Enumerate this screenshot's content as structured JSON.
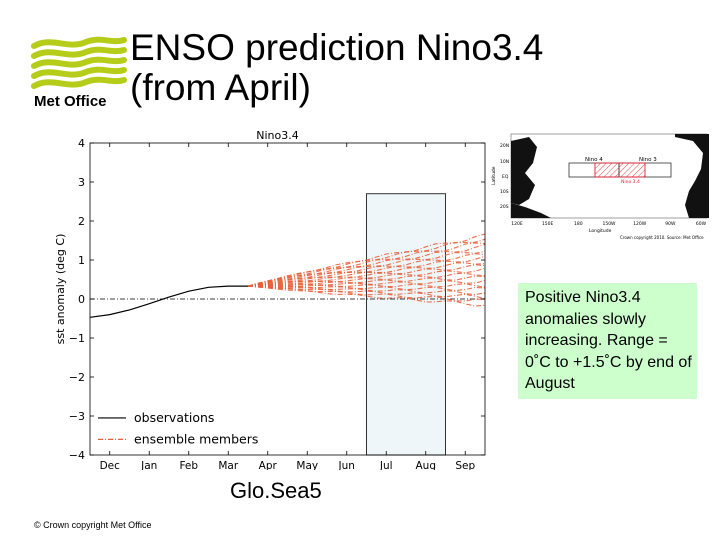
{
  "branding": {
    "logo_text": "Met Office",
    "copyright": "© Crown copyright   Met Office"
  },
  "slide": {
    "title_line1": "ENSO prediction Nino3.4",
    "title_line2": "(from April)",
    "caption": "Glo.Sea5",
    "callout": "Positive Nino3.4 anomalies slowly increasing. Range = 0˚C to +1.5˚C by end of August"
  },
  "colors": {
    "logo_green": "#b5cc18",
    "logo_navy": "#1a2a50",
    "observations": "#000000",
    "ensemble": "#e8613a",
    "highlight_fill": "#eef6f9",
    "callout_bg": "#ccffcc"
  },
  "map": {
    "labels": {
      "nino4": "Nino 4",
      "nino3": "Nino 3",
      "nino34": "Nino 3.4",
      "lat_20n": "20N",
      "lat_10n": "10N",
      "lat_eq": "EQ",
      "lat_10s": "10S",
      "lat_20s": "20S",
      "lat_axis": "Latitude",
      "lon_axis": "Longitude",
      "credit": "Crown copyright 2010. Source: Met Office"
    },
    "lon_ticks": [
      "120E",
      "150E",
      "180",
      "150W",
      "120W",
      "90W",
      "60W"
    ]
  },
  "chart_data": {
    "type": "line",
    "title": "Nino3.4",
    "xlabel": "",
    "ylabel": "sst anomaly (deg C)",
    "categories": [
      "Dec",
      "Jan",
      "Feb",
      "Mar",
      "Apr",
      "May",
      "Jun",
      "Jul",
      "Aug",
      "Sep"
    ],
    "ylim": [
      -4,
      4
    ],
    "yticks": [
      4,
      3,
      2,
      1,
      0,
      -1,
      -2,
      -3,
      -4
    ],
    "ytick_labels": [
      "4",
      "3",
      "2",
      "1",
      "0",
      "−1",
      "−2",
      "−3",
      "−4"
    ],
    "grid": false,
    "zero_line": "dash-dot",
    "highlight_band": {
      "x_start": 6.5,
      "x_end": 8.5,
      "y_top": 2.7,
      "y_bottom": -4
    },
    "legend": {
      "position": "bottom-left",
      "entries": [
        "observations",
        "ensemble members"
      ]
    },
    "observations": {
      "name": "observations",
      "x": [
        -0.5,
        0.0,
        0.5,
        1.0,
        1.5,
        2.0,
        2.5,
        3.0,
        3.5
      ],
      "y": [
        -0.47,
        -0.4,
        -0.28,
        -0.12,
        0.05,
        0.2,
        0.3,
        0.33,
        0.33
      ]
    },
    "ensemble": {
      "name": "ensemble members",
      "start_x": 3.5,
      "end_x": 9.5,
      "start_y": 0.33,
      "members_end_y": [
        -0.15,
        -0.05,
        0.05,
        0.15,
        0.25,
        0.35,
        0.45,
        0.55,
        0.65,
        0.75,
        0.85,
        0.95,
        1.05,
        1.15,
        1.25,
        1.35,
        1.45,
        1.55,
        1.62
      ]
    }
  }
}
